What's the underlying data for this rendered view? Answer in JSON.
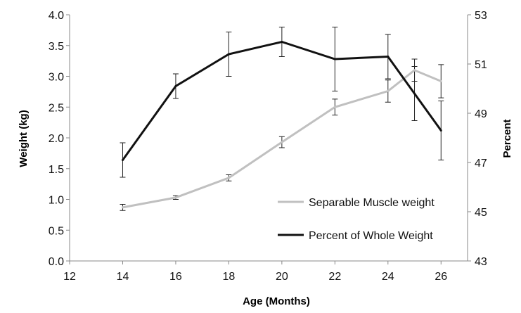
{
  "chart_data": {
    "type": "line",
    "xlabel": "Age (Months)",
    "ylabel_left": "Weight (kg)",
    "ylabel_right": "Percent",
    "xlim": [
      12,
      27
    ],
    "x_ticks": [
      12,
      14,
      16,
      18,
      20,
      22,
      24,
      26
    ],
    "y_left_lim": [
      0,
      4
    ],
    "y_left_ticks": [
      "0.0",
      "0.5",
      "1.0",
      "1.5",
      "2.0",
      "2.5",
      "3.0",
      "3.5",
      "4.0"
    ],
    "y_right_lim": [
      43,
      53
    ],
    "y_right_ticks": [
      "43",
      "45",
      "47",
      "49",
      "51",
      "53"
    ],
    "grid": false,
    "legend_position": "bottom-right",
    "series": [
      {
        "name": "Separable Muscle weight",
        "axis": "left",
        "color": "#c0c0c0",
        "x": [
          14,
          16,
          18,
          20,
          22,
          24,
          25,
          26
        ],
        "values": [
          0.87,
          1.03,
          1.35,
          1.93,
          2.5,
          2.76,
          3.1,
          2.92
        ],
        "error": [
          0.05,
          0.03,
          0.05,
          0.09,
          0.13,
          0.18,
          0.18,
          0.27
        ]
      },
      {
        "name": "Percent of Whole Weight",
        "axis": "right",
        "color": "#111111",
        "x": [
          14,
          16,
          18,
          20,
          22,
          24,
          25,
          26
        ],
        "values": [
          47.1,
          50.1,
          51.4,
          51.9,
          51.2,
          51.3,
          49.8,
          48.3
        ],
        "error": [
          0.7,
          0.5,
          0.9,
          0.6,
          1.3,
          0.9,
          1.1,
          1.2
        ]
      }
    ]
  }
}
